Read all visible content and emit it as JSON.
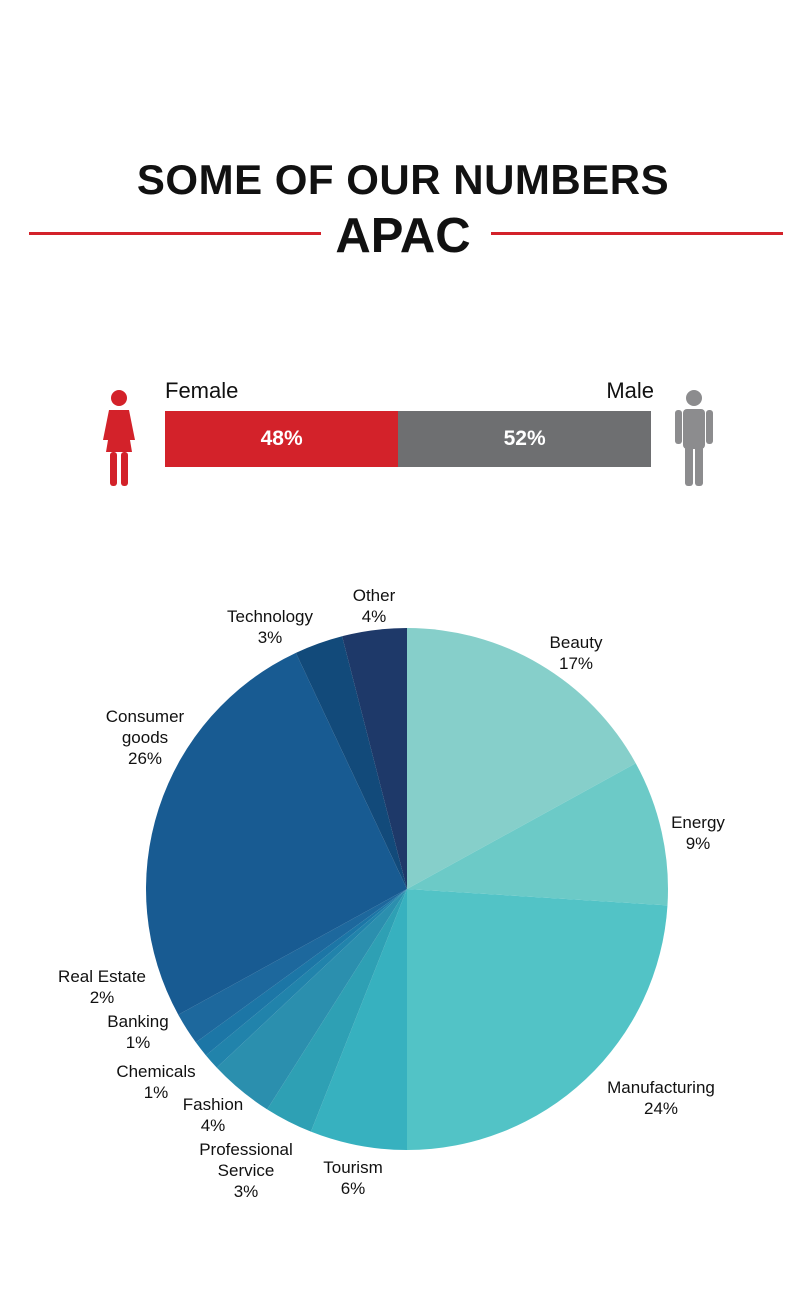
{
  "header": {
    "title": "SOME OF OUR NUMBERS",
    "subtitle": "APAC",
    "accent_color": "#d3222a"
  },
  "gender": {
    "female": {
      "label": "Female",
      "value": 48,
      "text": "48%",
      "color": "#d3222a",
      "icon": "female-person-icon"
    },
    "male": {
      "label": "Male",
      "value": 52,
      "text": "52%",
      "color": "#6e6f71",
      "icon": "male-person-icon"
    }
  },
  "chart_data": {
    "type": "pie",
    "start": "top",
    "direction": "clockwise",
    "slices": [
      {
        "label": [
          "Beauty"
        ],
        "value": 17,
        "text": "17%",
        "color": "#86cfca"
      },
      {
        "label": [
          "Energy"
        ],
        "value": 9,
        "text": "9%",
        "color": "#6ccac7"
      },
      {
        "label": [
          "Manufacturing"
        ],
        "value": 24,
        "text": "24%",
        "color": "#52c3c6"
      },
      {
        "label": [
          "Tourism"
        ],
        "value": 6,
        "text": "6%",
        "color": "#37b1bf"
      },
      {
        "label": [
          "Professional",
          "Service"
        ],
        "value": 3,
        "text": "3%",
        "color": "#2ea0b4"
      },
      {
        "label": [
          "Fashion"
        ],
        "value": 4,
        "text": "4%",
        "color": "#2b8fae"
      },
      {
        "label": [
          "Chemicals"
        ],
        "value": 1,
        "text": "1%",
        "color": "#2183ab"
      },
      {
        "label": [
          "Banking"
        ],
        "value": 1,
        "text": "1%",
        "color": "#1c76a6"
      },
      {
        "label": [
          "Real Estate"
        ],
        "value": 2,
        "text": "2%",
        "color": "#1d689d"
      },
      {
        "label": [
          "Consumer",
          "goods"
        ],
        "value": 26,
        "text": "26%",
        "color": "#185b92"
      },
      {
        "label": [
          "Technology"
        ],
        "value": 3,
        "text": "3%",
        "color": "#124a7a"
      },
      {
        "label": [
          "Other"
        ],
        "value": 4,
        "text": "4%",
        "color": "#1e3969"
      }
    ]
  }
}
